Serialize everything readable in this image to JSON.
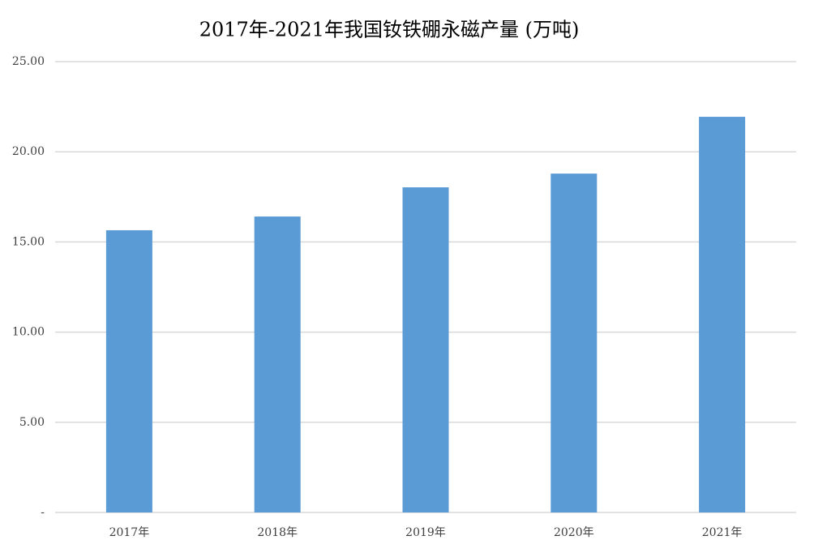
{
  "chart_data": {
    "type": "bar",
    "title": "2017年-2021年我国钕铁硼永磁产量 (万吨)",
    "categories": [
      "2017年",
      "2018年",
      "2019年",
      "2020年",
      "2021年"
    ],
    "values": [
      15.65,
      16.41,
      18.03,
      18.79,
      21.94
    ],
    "color": "#5b9bd5",
    "ylim": [
      0,
      25
    ],
    "yticks": [
      {
        "value": 0,
        "label": "-"
      },
      {
        "value": 5,
        "label": "5.00"
      },
      {
        "value": 10,
        "label": "10.00"
      },
      {
        "value": 15,
        "label": "15.00"
      },
      {
        "value": 20,
        "label": "20.00"
      },
      {
        "value": 25,
        "label": "25.00"
      }
    ],
    "grid": true
  }
}
